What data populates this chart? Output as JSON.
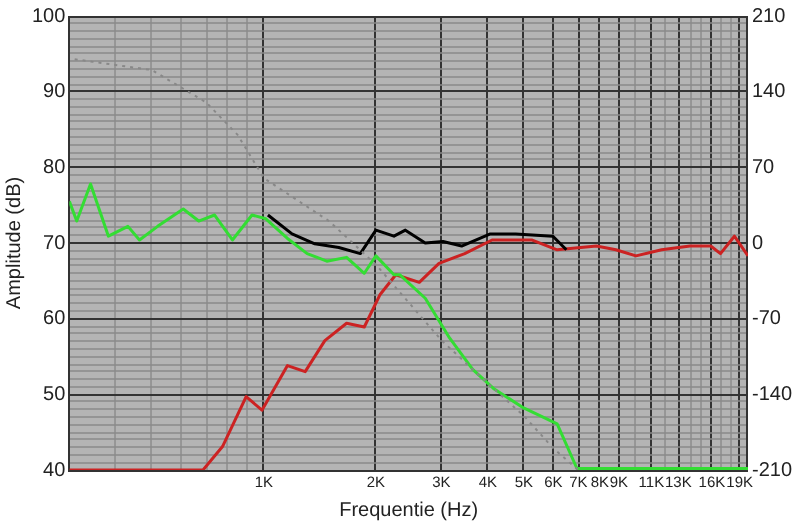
{
  "chart_data": {
    "type": "line",
    "xlabel": "Frequentie (Hz)",
    "ylabel": "Amplitude (dB)",
    "log": "x",
    "grid": true,
    "legend": false,
    "marker": "none",
    "xlim": [
      300,
      20000
    ],
    "ylim": [
      40,
      100
    ],
    "y2lim": [
      -210,
      210
    ],
    "xticks": [
      {
        "value": 300,
        "label": null
      },
      {
        "value": 400,
        "label": null
      },
      {
        "value": 500,
        "label": null
      },
      {
        "value": 600,
        "label": null
      },
      {
        "value": 700,
        "label": null
      },
      {
        "value": 800,
        "label": null
      },
      {
        "value": 900,
        "label": null
      },
      {
        "value": 1000,
        "label": "1K"
      },
      {
        "value": 2000,
        "label": "2K"
      },
      {
        "value": 3000,
        "label": "3K"
      },
      {
        "value": 4000,
        "label": "4K"
      },
      {
        "value": 5000,
        "label": "5K"
      },
      {
        "value": 6000,
        "label": "6K"
      },
      {
        "value": 7000,
        "label": "7K"
      },
      {
        "value": 8000,
        "label": "8K"
      },
      {
        "value": 9000,
        "label": "9K"
      },
      {
        "value": 10000,
        "label": null
      },
      {
        "value": 11000,
        "label": "11K"
      },
      {
        "value": 12000,
        "label": null
      },
      {
        "value": 13000,
        "label": "13K"
      },
      {
        "value": 14000,
        "label": null
      },
      {
        "value": 15000,
        "label": null
      },
      {
        "value": 16000,
        "label": "16K"
      },
      {
        "value": 17000,
        "label": null
      },
      {
        "value": 18000,
        "label": null
      },
      {
        "value": 19000,
        "label": "19K"
      },
      {
        "value": 20000,
        "label": null
      }
    ],
    "yticks": [
      40,
      {
        "value": 41,
        "label": null
      },
      {
        "value": 42,
        "label": null
      },
      {
        "value": 43,
        "label": null
      },
      {
        "value": 44,
        "label": null
      },
      {
        "value": 45,
        "label": null
      },
      {
        "value": 46,
        "label": null
      },
      {
        "value": 47,
        "label": null
      },
      {
        "value": 48,
        "label": null
      },
      {
        "value": 49,
        "label": null
      },
      50,
      {
        "value": 51,
        "label": null
      },
      {
        "value": 52,
        "label": null
      },
      {
        "value": 53,
        "label": null
      },
      {
        "value": 54,
        "label": null
      },
      {
        "value": 55,
        "label": null
      },
      {
        "value": 56,
        "label": null
      },
      {
        "value": 57,
        "label": null
      },
      {
        "value": 58,
        "label": null
      },
      {
        "value": 59,
        "label": null
      },
      60,
      {
        "value": 61,
        "label": null
      },
      {
        "value": 62,
        "label": null
      },
      {
        "value": 63,
        "label": null
      },
      {
        "value": 64,
        "label": null
      },
      {
        "value": 65,
        "label": null
      },
      {
        "value": 66,
        "label": null
      },
      {
        "value": 67,
        "label": null
      },
      {
        "value": 68,
        "label": null
      },
      {
        "value": 69,
        "label": null
      },
      70,
      {
        "value": 71,
        "label": null
      },
      {
        "value": 72,
        "label": null
      },
      {
        "value": 73,
        "label": null
      },
      {
        "value": 74,
        "label": null
      },
      {
        "value": 75,
        "label": null
      },
      {
        "value": 76,
        "label": null
      },
      {
        "value": 77,
        "label": null
      },
      {
        "value": 78,
        "label": null
      },
      {
        "value": 79,
        "label": null
      },
      80,
      {
        "value": 81,
        "label": null
      },
      {
        "value": 82,
        "label": null
      },
      {
        "value": 83,
        "label": null
      },
      {
        "value": 84,
        "label": null
      },
      {
        "value": 85,
        "label": null
      },
      {
        "value": 86,
        "label": null
      },
      {
        "value": 87,
        "label": null
      },
      {
        "value": 88,
        "label": null
      },
      {
        "value": 89,
        "label": null
      },
      90,
      {
        "value": 91,
        "label": null
      },
      {
        "value": 92,
        "label": null
      },
      {
        "value": 93,
        "label": null
      },
      {
        "value": 94,
        "label": null
      },
      {
        "value": 95,
        "label": null
      },
      {
        "value": 96,
        "label": null
      },
      {
        "value": 97,
        "label": null
      },
      {
        "value": 98,
        "label": null
      },
      {
        "value": 99,
        "label": null
      },
      100
    ],
    "y2ticks": [
      -210,
      -140,
      -70,
      0,
      70,
      140,
      210
    ],
    "series": [
      {
        "color": "#888888",
        "axis": "y2",
        "line_style": "dotted",
        "x": [
          310,
          500,
          700,
          850,
          1000,
          1500,
          2000,
          3000,
          4000,
          5000,
          6000,
          7000
        ],
        "values": [
          170,
          160,
          130,
          100,
          60,
          20,
          -20,
          -90,
          -130,
          -160,
          -190,
          -210
        ]
      },
      {
        "color": "#000000",
        "x": [
          1025,
          1190,
          1370,
          1590,
          1816,
          2000,
          2236,
          2400,
          2714,
          3030,
          3400,
          4060,
          4750,
          5980,
          6500
        ],
        "values": [
          73.7,
          71.2,
          69.9,
          69.4,
          68.6,
          71.7,
          70.9,
          71.7,
          70,
          70.2,
          69.6,
          71.2,
          71.2,
          70.9,
          69.1
        ]
      },
      {
        "color": "#33dd33",
        "x": [
          300,
          314,
          342,
          382,
          431,
          463,
          518,
          607,
          668,
          737,
          823,
          929,
          1012,
          1157,
          1307,
          1476,
          1668,
          1861,
          2000,
          2236,
          2320,
          2714,
          3140,
          3640,
          4160,
          4990,
          6140,
          6940,
          20000
        ],
        "values": [
          75.5,
          72.9,
          77.8,
          70.9,
          72.2,
          70.4,
          72.2,
          74.5,
          72.9,
          73.7,
          70.4,
          73.7,
          73.2,
          70.6,
          68.6,
          67.6,
          68.1,
          66,
          68.3,
          65.8,
          65.8,
          62.7,
          57.6,
          53.3,
          50.7,
          48.2,
          46.1,
          40.2,
          40.2
        ]
      },
      {
        "color": "#cc2222",
        "x": [
          300,
          686,
          774,
          896,
          988,
          1157,
          1291,
          1458,
          1668,
          1861,
          2053,
          2262,
          2616,
          2955,
          3465,
          4104,
          5242,
          6140,
          7830,
          8830,
          10000,
          11720,
          13970,
          15880,
          16870,
          18390,
          20000
        ],
        "values": [
          40,
          40,
          43.1,
          49.7,
          47.9,
          53.8,
          53,
          57.1,
          59.4,
          58.9,
          63.2,
          65.8,
          64.8,
          67.3,
          68.6,
          70.4,
          70.4,
          69.1,
          69.6,
          69.1,
          68.3,
          69.1,
          69.6,
          69.6,
          68.6,
          70.9,
          68.3
        ]
      }
    ]
  }
}
